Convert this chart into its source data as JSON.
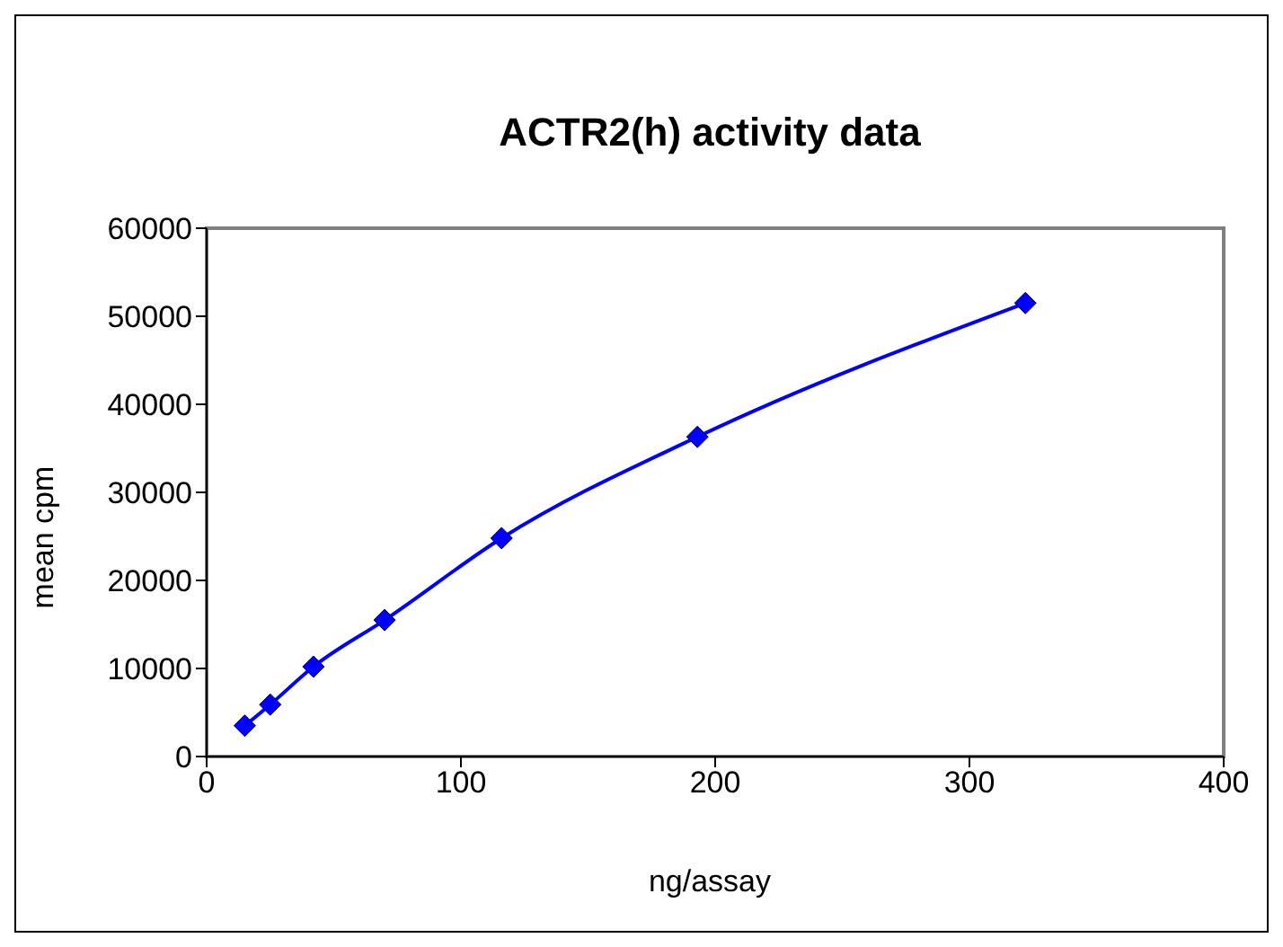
{
  "chart_data": {
    "type": "line",
    "title": "ACTR2(h) activity data",
    "xlabel": "ng/assay",
    "ylabel": "mean cpm",
    "x": [
      15,
      25,
      42,
      70,
      116,
      193,
      322
    ],
    "series": [
      {
        "color": "#0000ff",
        "values": [
          3500,
          5900,
          10200,
          15500,
          24800,
          36300,
          51500
        ]
      }
    ],
    "xlim": [
      0,
      400
    ],
    "xticks": [
      0,
      100,
      200,
      300,
      400
    ],
    "ylim": [
      0,
      60000
    ],
    "yticks": [
      0,
      10000,
      20000,
      30000,
      40000,
      50000,
      60000
    ],
    "grid": false,
    "legend": false,
    "marker": "diamond",
    "line_style": "solid"
  }
}
